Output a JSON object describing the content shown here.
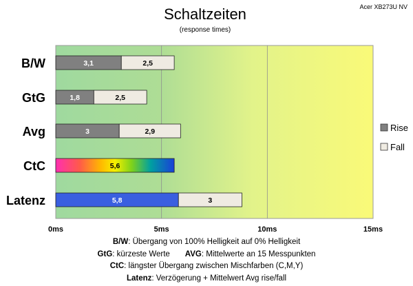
{
  "chart_data": {
    "type": "bar",
    "orientation": "horizontal",
    "stacked": true,
    "title": "Schaltzeiten",
    "subtitle": "(response times)",
    "corner_label": "Acer XB273U NV",
    "categories": [
      "B/W",
      "GtG",
      "Avg",
      "CtC",
      "Latenz"
    ],
    "series": [
      {
        "name": "Rise",
        "color": "#808080",
        "values": [
          3.1,
          1.8,
          3,
          null,
          null
        ]
      },
      {
        "name": "Fall",
        "color": "#efebe2",
        "values": [
          2.5,
          2.5,
          2.9,
          null,
          3
        ]
      }
    ],
    "single_bars": [
      {
        "category": "CtC",
        "value": 5.6,
        "label": "5,6",
        "fill": "rainbow"
      },
      {
        "category": "Latenz",
        "value": 5.8,
        "label": "5,8",
        "fill": "#3a5fe0",
        "label_color": "#ffffff"
      }
    ],
    "value_labels": [
      [
        "3,1",
        "2,5"
      ],
      [
        "1,8",
        "2,5"
      ],
      [
        "3",
        "2,9"
      ],
      [
        "5,6"
      ],
      [
        "5,8",
        "3"
      ]
    ],
    "x_ticks": [
      "0ms",
      "5ms",
      "10ms",
      "15ms"
    ],
    "xlim": [
      0,
      15
    ],
    "grid": true,
    "legend_position": "right",
    "background_colors": [
      "#a3dba0",
      "#d6ee8f",
      "#f7f77a"
    ]
  },
  "footnotes": {
    "line1": {
      "key": "B/W",
      "text": ":  Übergang von 100% Helligkeit auf 0% Helligkeit"
    },
    "line2a": {
      "key": "GtG",
      "text": ": kürzeste  Werte"
    },
    "line2b": {
      "key": "AVG",
      "text": ": Mittelwerte  an 15 Messpunkten"
    },
    "line3": {
      "key": "CtC",
      "text": ": längster Übergang  zwischen Mischfarben  (C,M,Y)"
    },
    "line4": {
      "key": "Latenz",
      "text": ": Verzögerung  + Mittelwert Avg rise/fall"
    }
  }
}
